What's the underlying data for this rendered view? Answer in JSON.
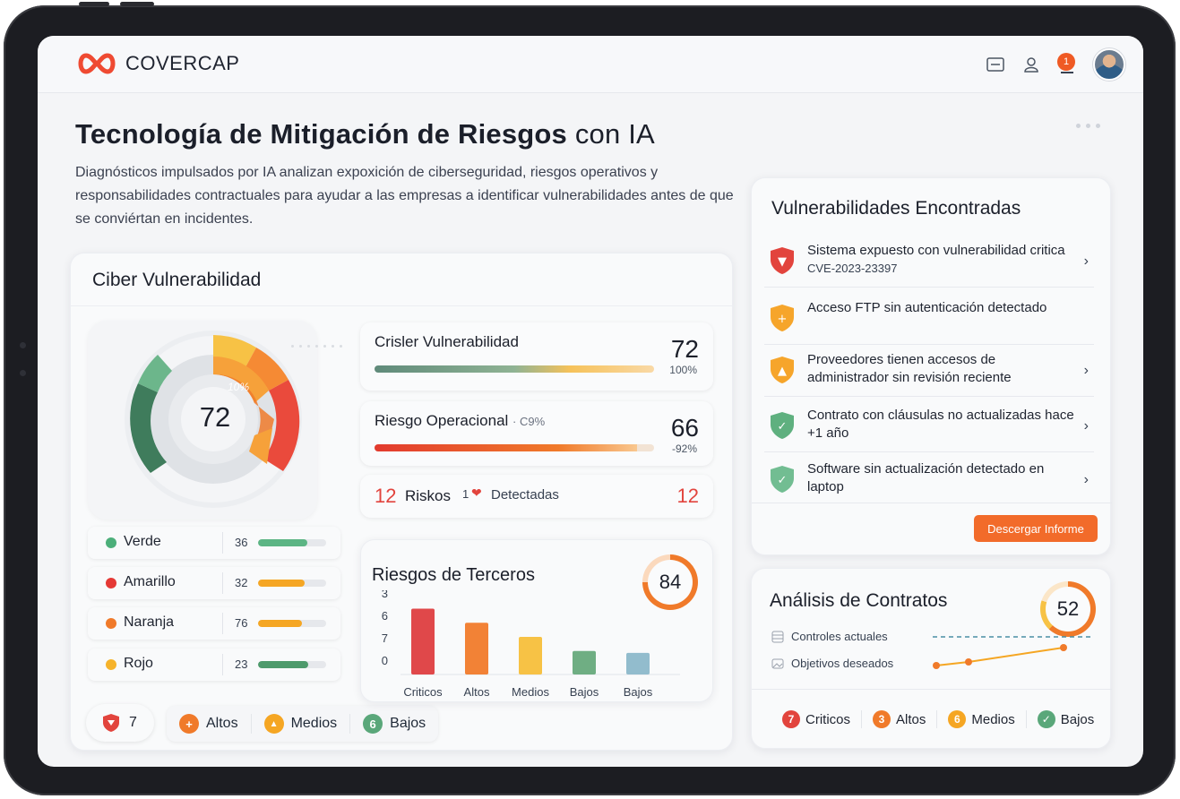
{
  "app": {
    "brand": "COVERCAP",
    "notification_count": "1"
  },
  "hero": {
    "title_bold": "Tecnología de Mitigación de Riesgos",
    "title_light": "con IA",
    "description": "Diagnósticos impulsados por IA analizan expoxición de ciberseguridad, riesgos operativos y responsabilidades contractuales para ayudar a las empresas a identificar vulnerabilidades antes de que se conviértan en incidentes."
  },
  "cyber": {
    "title": "Ciber Vulnerabilidad",
    "gauge_value": "72",
    "gauge_pct": "10%",
    "metrics": [
      {
        "label": "Crisler Vulnerabilidad",
        "value": "72",
        "sub": "100%",
        "fill": 1.0
      },
      {
        "label": "Riesgo Operacional",
        "tag": "· C9%",
        "value": "66",
        "sub": "-92%",
        "fill": 0.94
      }
    ],
    "risk_summary": {
      "count": "12",
      "label": "Riskos",
      "mid": "1",
      "detected": "Detectadas",
      "total": "12"
    },
    "legend": [
      {
        "label": "Verde",
        "value": "36",
        "color": "#4caf7a",
        "fill": 0.72,
        "bar": "#5cb584"
      },
      {
        "label": "Amarillo",
        "value": "32",
        "color": "#e53935",
        "fill": 0.68,
        "bar": "#f5a623"
      },
      {
        "label": "Naranja",
        "value": "76",
        "color": "#f07a2a",
        "fill": 0.64,
        "bar": "#f5a623"
      },
      {
        "label": "Rojo",
        "value": "23",
        "color": "#f6b32b",
        "fill": 0.74,
        "bar": "#4e9a6c"
      }
    ],
    "bottom_count": "7",
    "chips": [
      {
        "label": "Altos",
        "glyph": "+",
        "color": "#f07a2a"
      },
      {
        "label": "Medios",
        "glyph": "▲",
        "color": "#f5a623"
      },
      {
        "label": "Bajos",
        "glyph": "6",
        "color": "#5aa77a"
      }
    ]
  },
  "third_party": {
    "title": "Riesgos de Terceros",
    "score": "84",
    "chart_data": {
      "type": "bar",
      "categories": [
        "Criticos",
        "Altos",
        "Medios",
        "Bajos",
        "Bajos"
      ],
      "values": [
        7,
        5.5,
        4,
        2.5,
        2.3
      ],
      "colors": [
        "#e0484a",
        "#f28236",
        "#f7c245",
        "#6fae83",
        "#92bccd"
      ],
      "y_tick_labels": [
        "3",
        "6",
        "7",
        "0"
      ],
      "ylim": [
        0,
        8
      ]
    }
  },
  "vulns": {
    "title": "Vulnerabilidades Encontradas",
    "items": [
      {
        "text": "Sistema expuesto con vulnerabilidad critica",
        "code": "CVE-2023-23397",
        "shield": "#e2443d",
        "glyph": "▼",
        "chevron": "›"
      },
      {
        "text": "Acceso FTP sin autenticación detectado",
        "code": "",
        "shield": "#f6a52b",
        "glyph": "+",
        "chevron": ""
      },
      {
        "text": "Proveedores tienen accesos de administrador sin revisión reciente",
        "code": "",
        "shield": "#f6a52b",
        "glyph": "▲",
        "chevron": "›"
      },
      {
        "text": "Contrato con cláusulas no actualizadas hace +1 año",
        "code": "",
        "shield": "#5fb07f",
        "glyph": "✓",
        "chevron": "›"
      },
      {
        "text": "Software sin actualización detectado en laptop",
        "code": "",
        "shield": "#72bd92",
        "glyph": "✓",
        "chevron": "›"
      }
    ],
    "download_label": "Descergar Informe"
  },
  "contracts": {
    "title": "Análisis de Contratos",
    "score": "52",
    "legend": [
      {
        "label": "Controles actuales"
      },
      {
        "label": "Objetivos deseados"
      }
    ],
    "chips": [
      {
        "num": "7",
        "label": "Criticos",
        "color": "#e2443d"
      },
      {
        "num": "3",
        "label": "Altos",
        "color": "#f07a2a"
      },
      {
        "num": "6",
        "label": "Medios",
        "color": "#f5a623"
      },
      {
        "num": "✓",
        "label": "Bajos",
        "color": "#5aa77a"
      }
    ]
  }
}
